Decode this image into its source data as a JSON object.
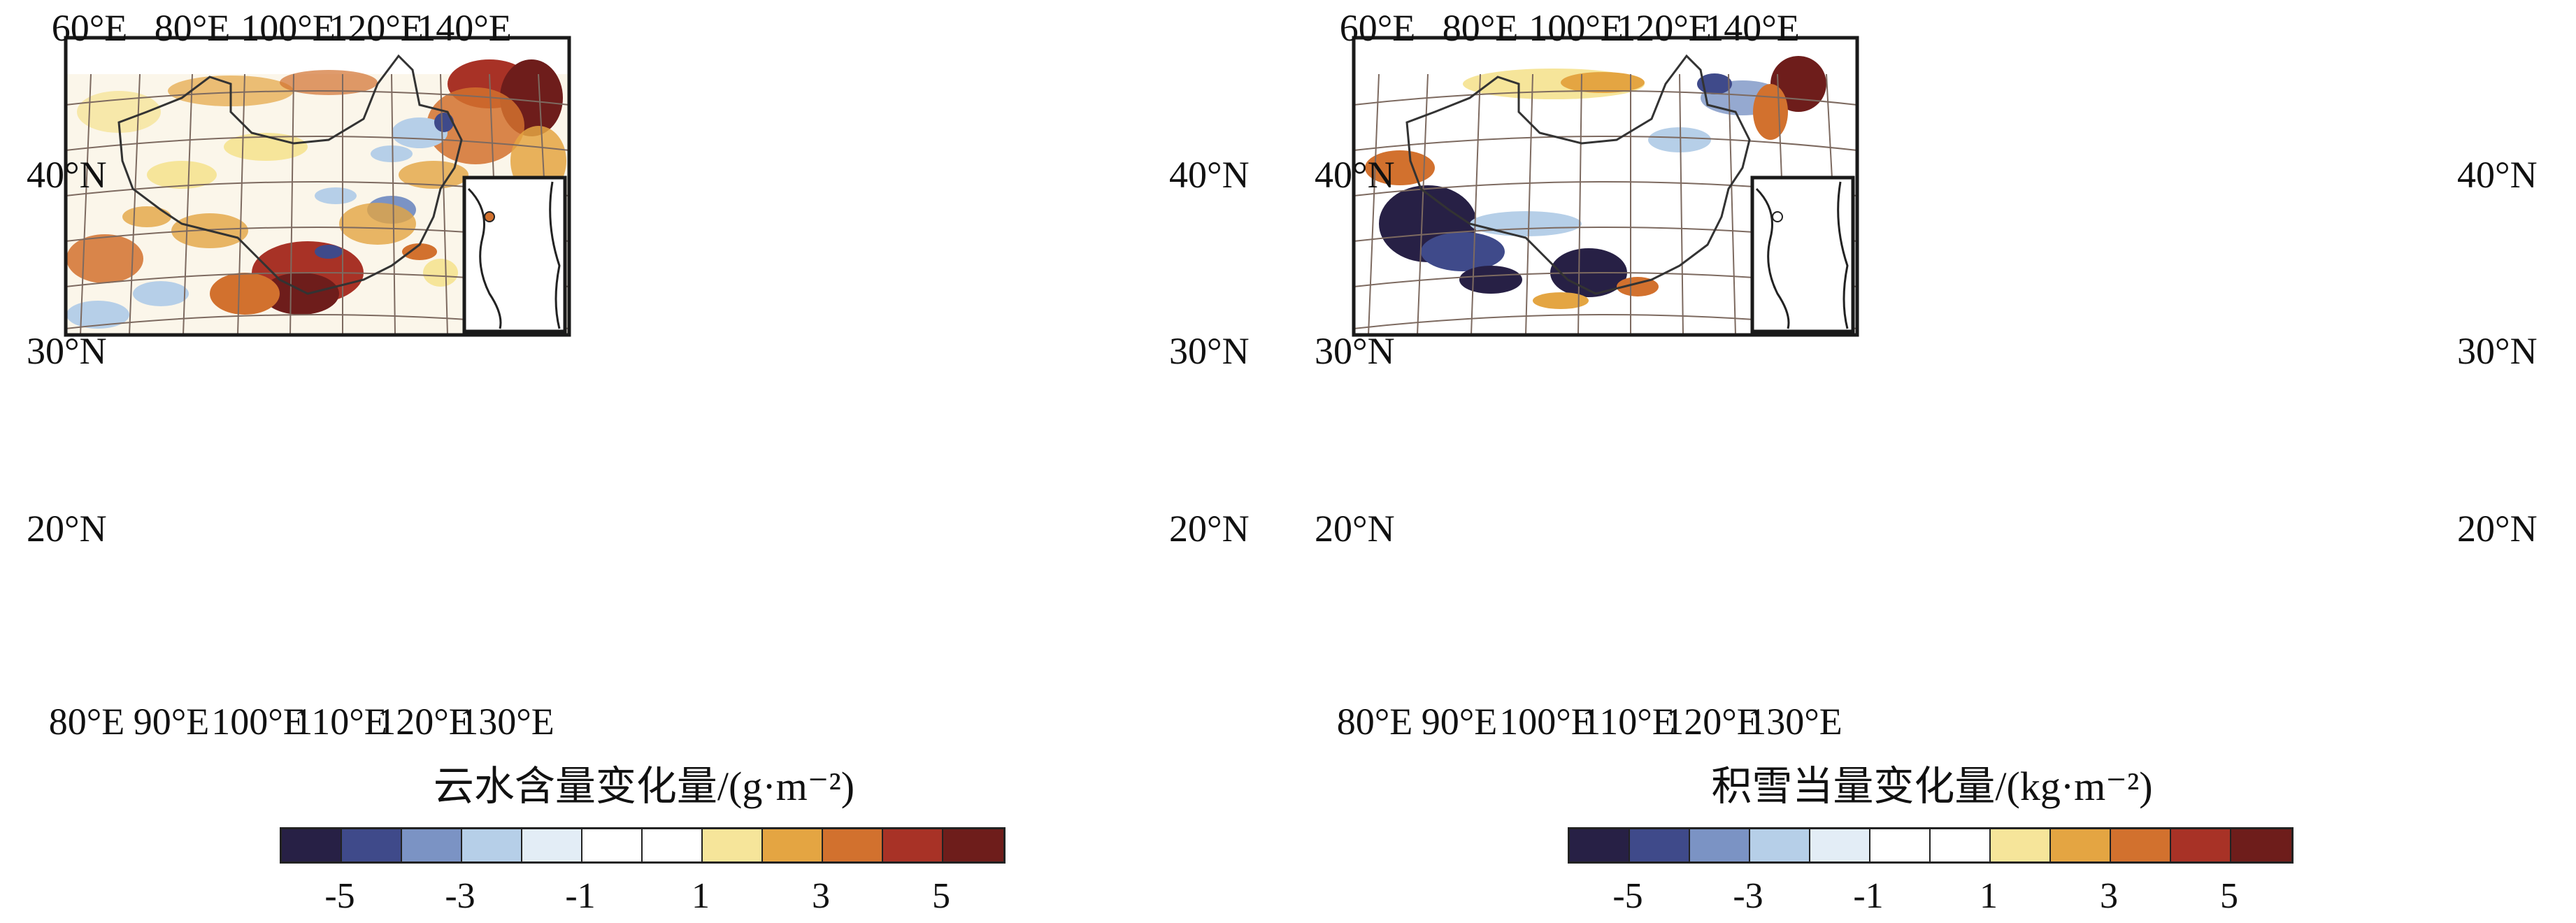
{
  "colors": {
    "neg5": "#272045",
    "neg4": "#3f4a8a",
    "neg3": "#7b93c4",
    "neg2": "#b6cfe8",
    "neg1": "#e3edf6",
    "zero": "#ffffff",
    "pos1": "#f6e59a",
    "pos2": "#e4a542",
    "pos3": "#d2712e",
    "pos4": "#a83226",
    "pos5": "#6e1d1b",
    "frame": "#1a1a1a",
    "grid": "#7d6a60",
    "border": "#333333"
  },
  "panels": [
    {
      "title": "云水含量变化量/(g·m⁻²)",
      "top_ticks": [
        "60°E",
        "80°E",
        "100°E",
        "120°E",
        "140°E"
      ],
      "bottom_ticks": [
        "80°E",
        "90°E",
        "100°E",
        "110°E",
        "120°E",
        "130°E"
      ],
      "left_ticks": [
        "40°N",
        "30°N",
        "20°N"
      ],
      "right_ticks": [
        "40°N",
        "30°N",
        "20°N"
      ],
      "colorbar_labels": [
        "-5",
        "-3",
        "-1",
        "1",
        "3",
        "5"
      ]
    },
    {
      "title": "积雪当量变化量/(kg·m⁻²)",
      "top_ticks": [
        "60°E",
        "80°E",
        "100°E",
        "120°E",
        "140°E"
      ],
      "bottom_ticks": [
        "80°E",
        "90°E",
        "100°E",
        "110°E",
        "120°E",
        "130°E"
      ],
      "left_ticks": [
        "40°N",
        "30°N",
        "20°N"
      ],
      "right_ticks": [
        "40°N",
        "30°N",
        "20°N"
      ],
      "colorbar_labels": [
        "-5",
        "-3",
        "-1",
        "1",
        "3",
        "5"
      ]
    }
  ]
}
